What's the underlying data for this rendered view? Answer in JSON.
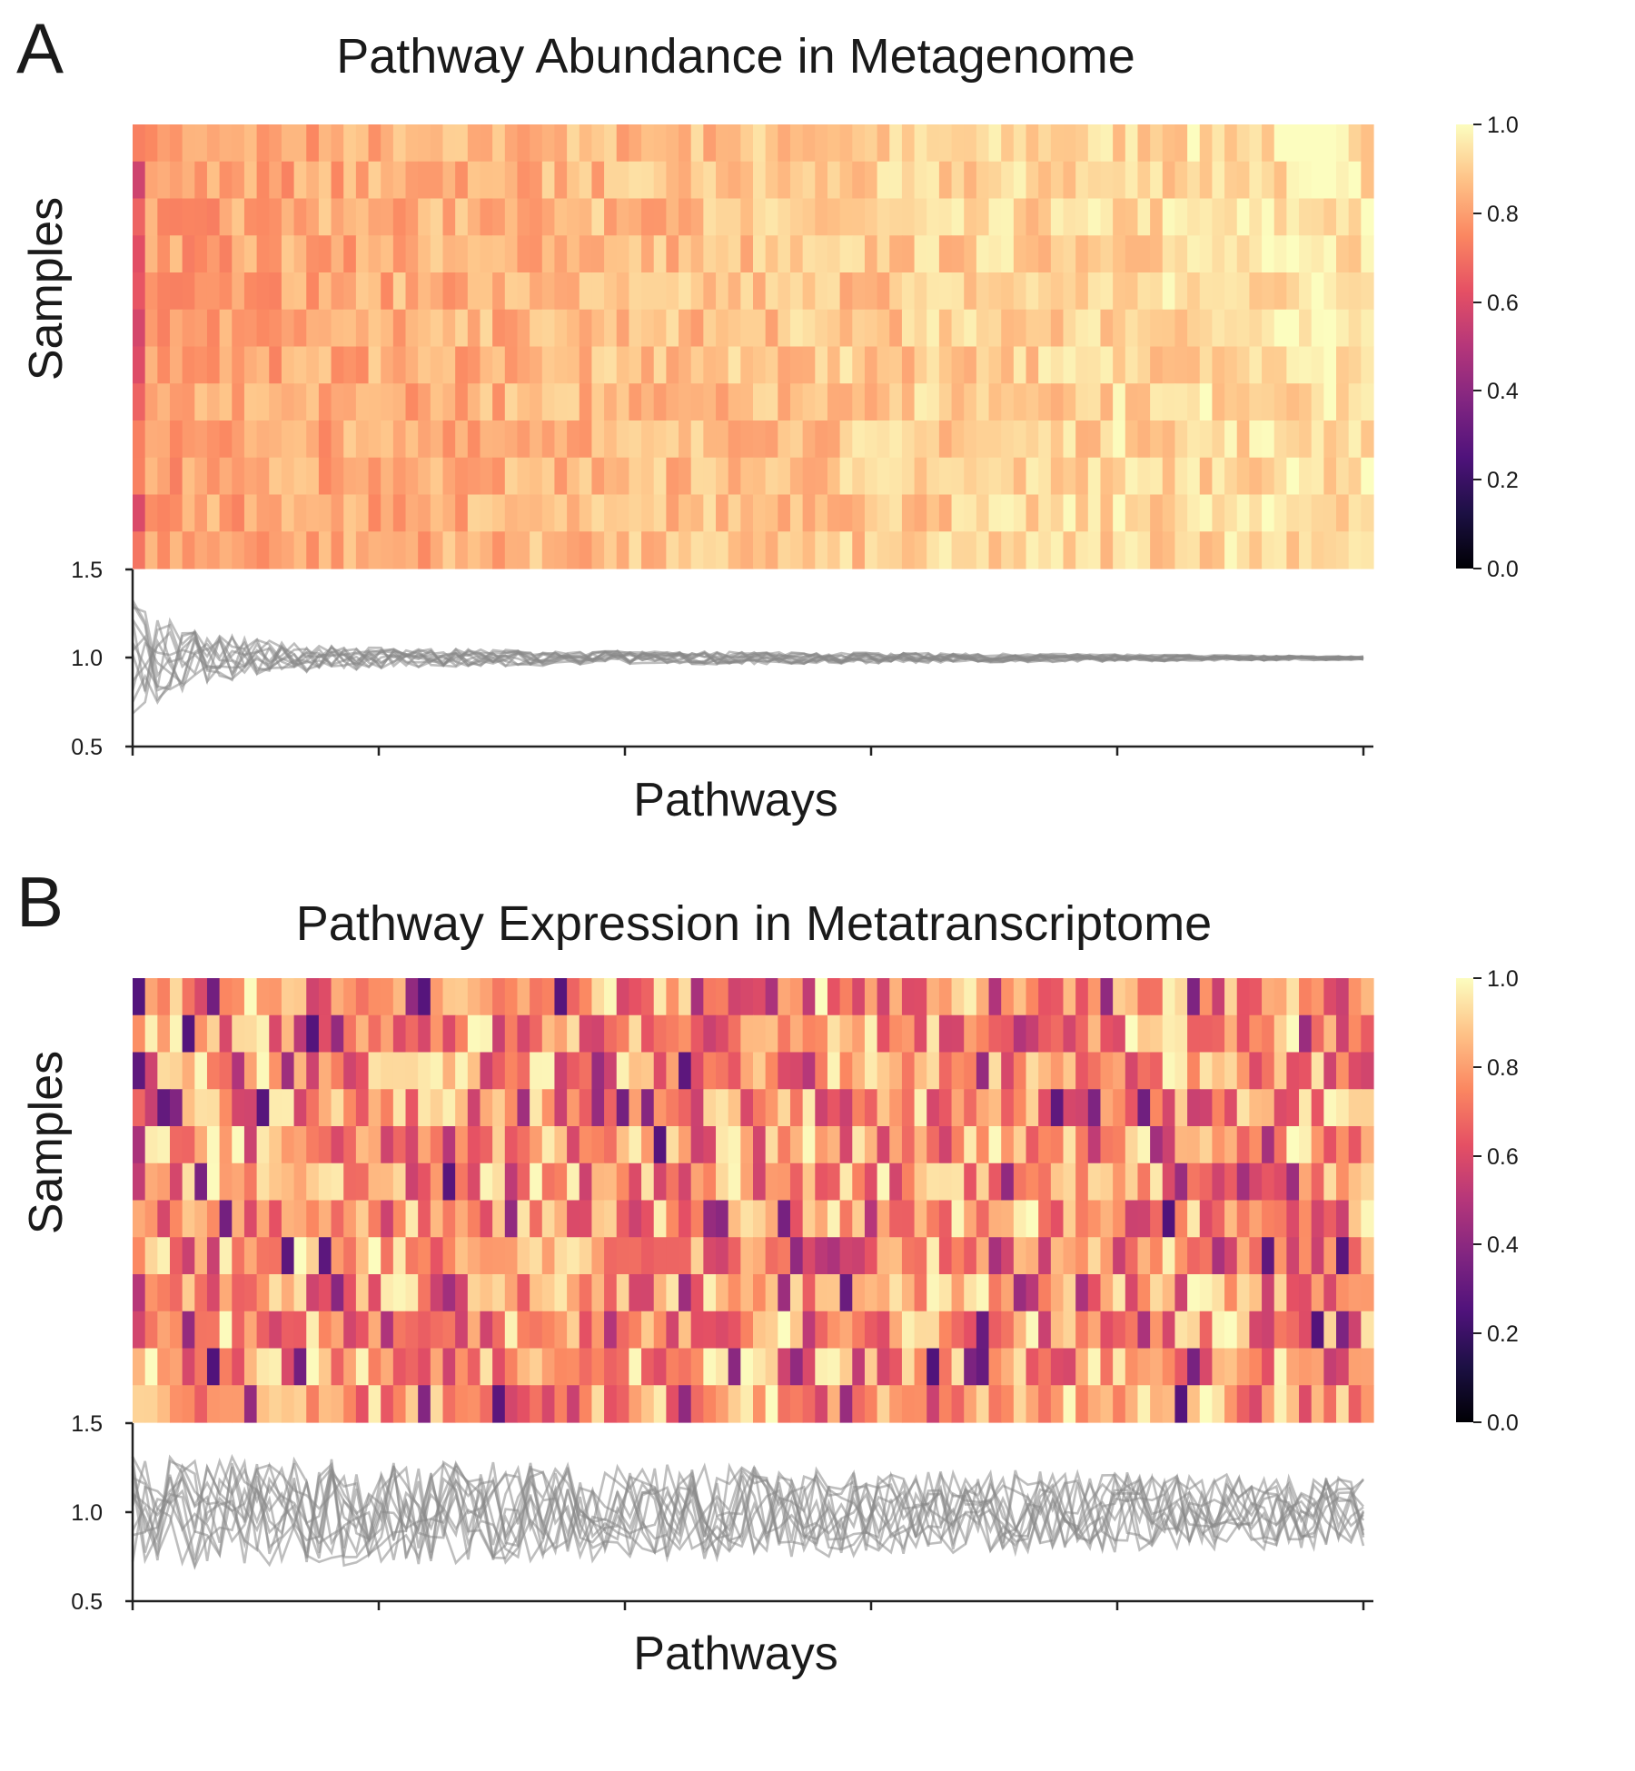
{
  "panels": [
    {
      "letter": "A",
      "title": "Pathway Abundance in Metagenome",
      "ylabel": "Samples",
      "xlabel": "Pathways",
      "colorbar": {
        "ticks": [
          "0.0",
          "0.2",
          "0.4",
          "0.6",
          "0.8",
          "1.0"
        ]
      },
      "line_yticks": [
        "0.5",
        "1.0",
        "1.5"
      ]
    },
    {
      "letter": "B",
      "title": "Pathway Expression in Metatranscriptome",
      "ylabel": "Samples",
      "xlabel": "Pathways",
      "colorbar": {
        "ticks": [
          "0.0",
          "0.2",
          "0.4",
          "0.6",
          "0.8",
          "1.0"
        ]
      },
      "line_yticks": [
        "0.5",
        "1.0",
        "1.5"
      ]
    }
  ],
  "chart_data": [
    {
      "type": "heatmap",
      "title": "Pathway Abundance in Metagenome",
      "xlabel": "Pathways",
      "ylabel": "Samples",
      "colormap": "magma",
      "vmin": 0.0,
      "vmax": 1.0,
      "n_samples": 12,
      "n_pathways": 100,
      "pattern": "values mostly 0.8-1.0; lowest values (0.45-0.75) in the first few pathway columns, increasing toward 1.0 across pathways"
    },
    {
      "type": "line",
      "xlabel": "Pathways",
      "ylim": [
        0.5,
        1.5
      ],
      "n_series": 12,
      "line_color": "#888888",
      "pattern": "per-sample ratio lines around 1.0; spread about ±0.3 at first pathway, narrowing to ~1.0 at the last pathway"
    },
    {
      "type": "heatmap",
      "title": "Pathway Expression in Metatranscriptome",
      "xlabel": "Pathways",
      "ylabel": "Samples",
      "colormap": "magma",
      "vmin": 0.0,
      "vmax": 1.0,
      "n_samples": 12,
      "n_pathways": 100,
      "pattern": "values widely spread 0.2-1.0, mostly 0.6-0.95 with scattered dark purple cells"
    },
    {
      "type": "line",
      "xlabel": "Pathways",
      "ylim": [
        0.5,
        1.5
      ],
      "n_series": 12,
      "line_color": "#888888",
      "pattern": "per-sample ratio lines fluctuating between ~0.5 and ~1.5 around 1.0, slightly narrower at the right end"
    }
  ]
}
